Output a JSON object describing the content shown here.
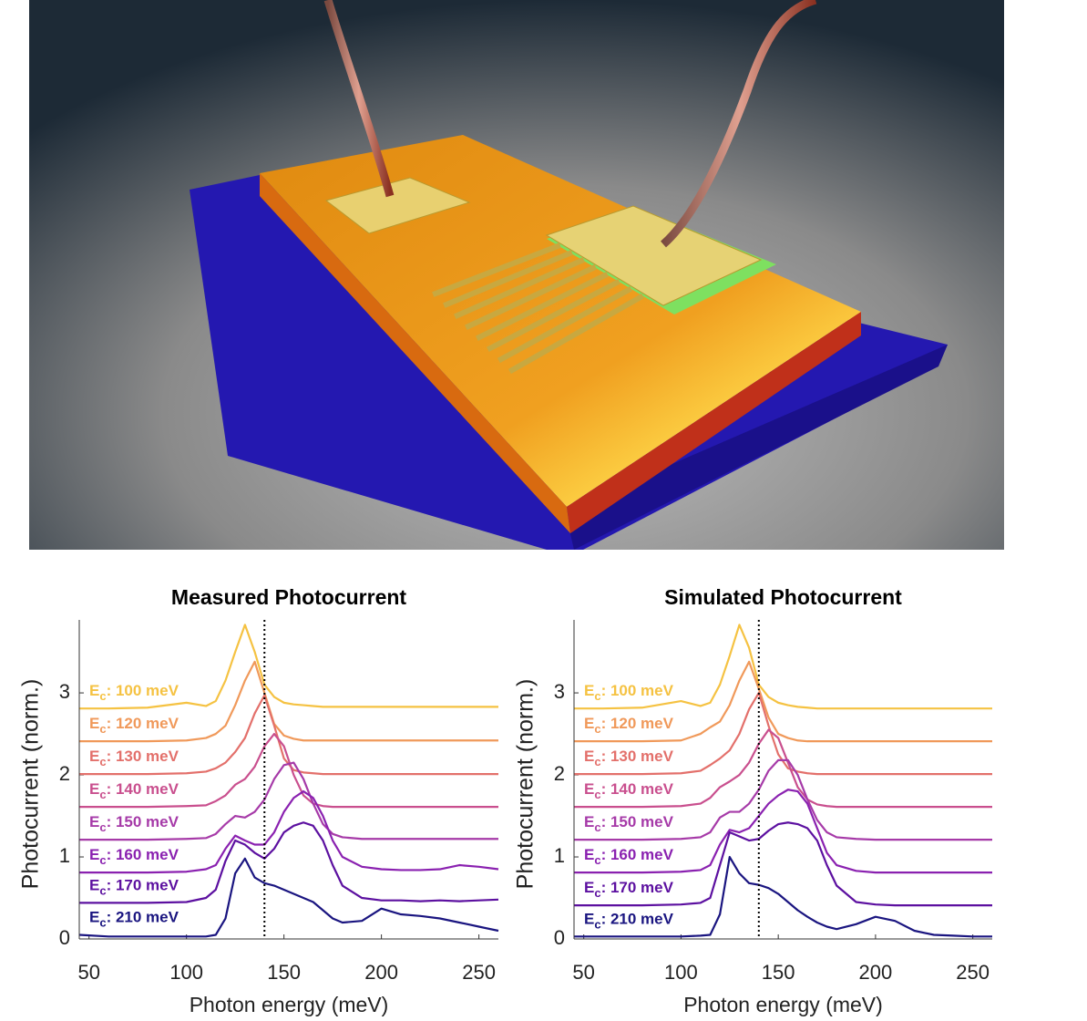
{
  "chart_data": [
    {
      "type": "line",
      "title": "Measured Photocurrent",
      "xlabel": "Photon energy (meV)",
      "ylabel": "Photocurrent (norm.)",
      "xlim": [
        45,
        260
      ],
      "ylim": [
        0,
        3.89
      ],
      "xticks": [
        50,
        100,
        150,
        200,
        250
      ],
      "yticks": [
        0,
        1,
        2,
        3
      ],
      "vline": 140,
      "x": [
        45,
        60,
        80,
        100,
        110,
        115,
        120,
        125,
        130,
        135,
        140,
        145,
        150,
        155,
        160,
        165,
        170,
        175,
        180,
        190,
        200,
        210,
        220,
        230,
        240,
        250,
        260
      ],
      "series": [
        {
          "name": "Ec: 100 meV",
          "color": "#f5c242",
          "values": [
            2.81,
            2.81,
            2.82,
            2.88,
            2.84,
            2.9,
            3.15,
            3.5,
            3.83,
            3.5,
            3.1,
            2.95,
            2.88,
            2.86,
            2.85,
            2.84,
            2.83,
            2.83,
            2.83,
            2.83,
            2.83,
            2.83,
            2.83,
            2.83,
            2.83,
            2.83,
            2.83
          ]
        },
        {
          "name": "Ec: 120 meV",
          "color": "#f0995a",
          "values": [
            2.41,
            2.41,
            2.41,
            2.42,
            2.45,
            2.5,
            2.6,
            2.85,
            3.15,
            3.38,
            3.0,
            2.62,
            2.48,
            2.44,
            2.42,
            2.42,
            2.42,
            2.42,
            2.42,
            2.42,
            2.42,
            2.42,
            2.42,
            2.42,
            2.42,
            2.42,
            2.42
          ]
        },
        {
          "name": "Ec: 130 meV",
          "color": "#e3706b",
          "values": [
            2.01,
            2.01,
            2.01,
            2.02,
            2.04,
            2.08,
            2.15,
            2.28,
            2.45,
            2.75,
            2.97,
            2.6,
            2.2,
            2.06,
            2.03,
            2.02,
            2.01,
            2.01,
            2.01,
            2.01,
            2.01,
            2.01,
            2.01,
            2.01,
            2.01,
            2.01,
            2.01
          ]
        },
        {
          "name": "Ec: 140 meV",
          "color": "#c94f8e",
          "values": [
            1.61,
            1.61,
            1.61,
            1.62,
            1.63,
            1.68,
            1.75,
            1.88,
            1.95,
            2.1,
            2.35,
            2.5,
            2.35,
            2.0,
            1.75,
            1.65,
            1.62,
            1.61,
            1.61,
            1.61,
            1.61,
            1.61,
            1.61,
            1.61,
            1.61,
            1.61,
            1.61
          ]
        },
        {
          "name": "Ec: 150 meV",
          "color": "#a63aa8",
          "values": [
            1.21,
            1.21,
            1.21,
            1.22,
            1.23,
            1.28,
            1.4,
            1.5,
            1.48,
            1.55,
            1.7,
            1.95,
            2.12,
            2.15,
            1.95,
            1.65,
            1.4,
            1.28,
            1.24,
            1.22,
            1.22,
            1.22,
            1.22,
            1.22,
            1.22,
            1.22,
            1.22
          ]
        },
        {
          "name": "Ec: 160 meV",
          "color": "#8a21b0",
          "values": [
            0.81,
            0.81,
            0.81,
            0.82,
            0.85,
            0.9,
            1.1,
            1.26,
            1.2,
            1.15,
            1.15,
            1.3,
            1.55,
            1.72,
            1.8,
            1.72,
            1.5,
            1.2,
            1.0,
            0.88,
            0.85,
            0.84,
            0.84,
            0.85,
            0.9,
            0.88,
            0.85
          ]
        },
        {
          "name": "Ec: 170 meV",
          "color": "#5c10a0",
          "values": [
            0.44,
            0.44,
            0.44,
            0.45,
            0.5,
            0.6,
            0.95,
            1.2,
            1.15,
            1.05,
            0.98,
            1.1,
            1.3,
            1.38,
            1.42,
            1.38,
            1.2,
            0.9,
            0.65,
            0.5,
            0.47,
            0.47,
            0.46,
            0.47,
            0.46,
            0.47,
            0.48
          ]
        },
        {
          "name": "Ec: 210 meV",
          "color": "#1a1580",
          "values": [
            0.05,
            0.03,
            0.03,
            0.03,
            0.03,
            0.05,
            0.25,
            0.8,
            0.98,
            0.75,
            0.68,
            0.65,
            0.6,
            0.55,
            0.5,
            0.45,
            0.35,
            0.25,
            0.2,
            0.22,
            0.37,
            0.3,
            0.28,
            0.25,
            0.2,
            0.15,
            0.1
          ]
        }
      ]
    },
    {
      "type": "line",
      "title": "Simulated Photocurrent",
      "xlabel": "Photon energy (meV)",
      "ylabel": "Photocurrent (norm.)",
      "xlim": [
        45,
        260
      ],
      "ylim": [
        0,
        3.89
      ],
      "xticks": [
        50,
        100,
        150,
        200,
        250
      ],
      "yticks": [
        0,
        1,
        2,
        3
      ],
      "vline": 140,
      "x": [
        45,
        60,
        80,
        100,
        110,
        115,
        120,
        125,
        130,
        135,
        140,
        145,
        150,
        155,
        160,
        165,
        170,
        175,
        180,
        190,
        200,
        210,
        220,
        230,
        240,
        250,
        260
      ],
      "series": [
        {
          "name": "Ec: 100 meV",
          "color": "#f5c242",
          "values": [
            2.81,
            2.81,
            2.82,
            2.9,
            2.84,
            2.88,
            3.1,
            3.45,
            3.83,
            3.55,
            3.1,
            2.95,
            2.88,
            2.85,
            2.83,
            2.82,
            2.81,
            2.81,
            2.81,
            2.81,
            2.81,
            2.81,
            2.81,
            2.81,
            2.81,
            2.81,
            2.81
          ]
        },
        {
          "name": "Ec: 120 meV",
          "color": "#f0995a",
          "values": [
            2.41,
            2.41,
            2.41,
            2.42,
            2.5,
            2.58,
            2.65,
            2.85,
            3.15,
            3.38,
            3.05,
            2.7,
            2.5,
            2.45,
            2.42,
            2.41,
            2.41,
            2.41,
            2.41,
            2.41,
            2.41,
            2.41,
            2.41,
            2.41,
            2.41,
            2.41,
            2.41
          ]
        },
        {
          "name": "Ec: 130 meV",
          "color": "#e3706b",
          "values": [
            2.01,
            2.01,
            2.01,
            2.02,
            2.05,
            2.12,
            2.2,
            2.3,
            2.5,
            2.8,
            3.0,
            2.6,
            2.25,
            2.08,
            2.04,
            2.02,
            2.01,
            2.01,
            2.01,
            2.01,
            2.01,
            2.01,
            2.01,
            2.01,
            2.01,
            2.01,
            2.01
          ]
        },
        {
          "name": "Ec: 140 meV",
          "color": "#c94f8e",
          "values": [
            1.61,
            1.61,
            1.61,
            1.62,
            1.65,
            1.72,
            1.85,
            1.92,
            2.0,
            2.15,
            2.38,
            2.55,
            2.45,
            2.15,
            1.85,
            1.7,
            1.64,
            1.62,
            1.61,
            1.61,
            1.61,
            1.61,
            1.61,
            1.61,
            1.61,
            1.61,
            1.61
          ]
        },
        {
          "name": "Ec: 150 meV",
          "color": "#a63aa8",
          "values": [
            1.21,
            1.21,
            1.21,
            1.22,
            1.24,
            1.3,
            1.48,
            1.55,
            1.55,
            1.65,
            1.82,
            2.05,
            2.18,
            2.18,
            2.0,
            1.7,
            1.45,
            1.3,
            1.24,
            1.22,
            1.21,
            1.21,
            1.21,
            1.21,
            1.21,
            1.21,
            1.21
          ]
        },
        {
          "name": "Ec: 160 meV",
          "color": "#8a21b0",
          "values": [
            0.81,
            0.81,
            0.81,
            0.82,
            0.84,
            0.9,
            1.15,
            1.33,
            1.3,
            1.35,
            1.5,
            1.65,
            1.75,
            1.82,
            1.8,
            1.65,
            1.35,
            1.05,
            0.9,
            0.83,
            0.81,
            0.81,
            0.81,
            0.81,
            0.81,
            0.81,
            0.81
          ]
        },
        {
          "name": "Ec: 170 meV",
          "color": "#5c10a0",
          "values": [
            0.41,
            0.41,
            0.41,
            0.42,
            0.44,
            0.5,
            0.9,
            1.3,
            1.25,
            1.2,
            1.22,
            1.32,
            1.4,
            1.42,
            1.4,
            1.35,
            1.2,
            0.9,
            0.65,
            0.45,
            0.42,
            0.41,
            0.41,
            0.41,
            0.41,
            0.41,
            0.41
          ]
        },
        {
          "name": "Ec: 210 meV",
          "color": "#1a1580",
          "values": [
            0.03,
            0.03,
            0.03,
            0.03,
            0.04,
            0.05,
            0.3,
            1.0,
            0.8,
            0.68,
            0.66,
            0.62,
            0.55,
            0.45,
            0.35,
            0.27,
            0.2,
            0.15,
            0.12,
            0.18,
            0.27,
            0.22,
            0.1,
            0.05,
            0.04,
            0.03,
            0.03
          ]
        }
      ]
    }
  ]
}
